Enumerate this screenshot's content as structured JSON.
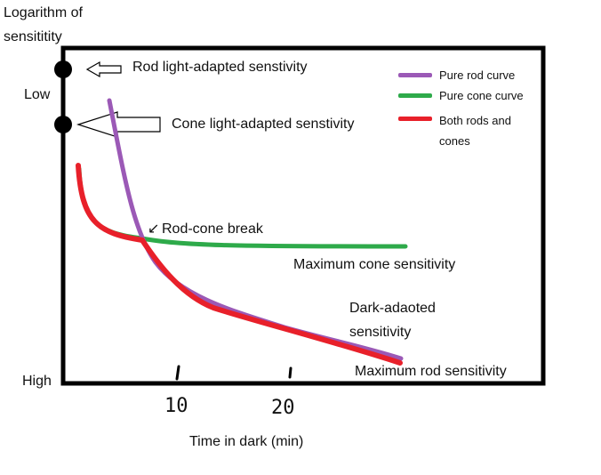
{
  "axis": {
    "y_title_line1": "Logarithm of",
    "y_title_line2": "sensititity",
    "y_low": "Low",
    "y_high": "High",
    "x_title": "Time in dark (min)",
    "x_tick_10": "10",
    "x_tick_20": "20"
  },
  "annotations": {
    "rod_light_adapted": "Rod light-adapted senstivity",
    "cone_light_adapted": "Cone light-adapted senstivity",
    "rod_cone_break": "Rod-cone break",
    "break_arrow": "↙",
    "max_cone": "Maximum cone sensitivity",
    "dark_adapted_line1": "Dark-adaoted",
    "dark_adapted_line2": "sensitivity",
    "max_rod": "Maximum rod sensitivity"
  },
  "legend": {
    "rod": "Pure rod curve",
    "cone": "Pure cone curve",
    "both_line1": "Both rods and",
    "both_line2": "cones"
  },
  "colors": {
    "rod": "#9b59b6",
    "cone": "#2eaa4a",
    "both": "#e8202a",
    "frame": "#000000"
  }
}
